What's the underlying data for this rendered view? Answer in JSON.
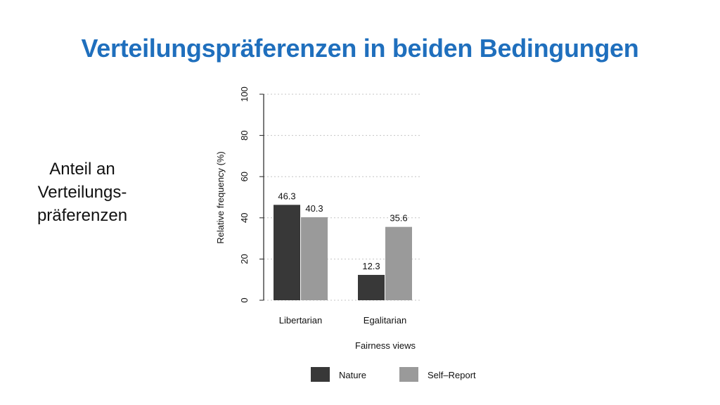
{
  "slide": {
    "title": "Verteilungspräferenzen in beiden Bedingungen",
    "side_label_lines": [
      "Anteil an",
      "Verteilungs-",
      "präferenzen"
    ]
  },
  "chart_data": {
    "type": "bar",
    "categories": [
      "Libertarian",
      "Egalitarian"
    ],
    "series": [
      {
        "name": "Nature",
        "values": [
          46.3,
          12.3
        ],
        "color": "#383838"
      },
      {
        "name": "Self–Report",
        "values": [
          40.3,
          35.6
        ],
        "color": "#9a9a9a"
      }
    ],
    "data_labels": [
      [
        "46.3",
        "12.3"
      ],
      [
        "40.3",
        "35.6"
      ]
    ],
    "xlabel": "Fairness views",
    "ylabel": "Relative frequency (%)",
    "ylim": [
      0,
      100
    ],
    "yticks": [
      0,
      20,
      40,
      60,
      80,
      100
    ],
    "grid": true,
    "legend_position": "bottom"
  }
}
